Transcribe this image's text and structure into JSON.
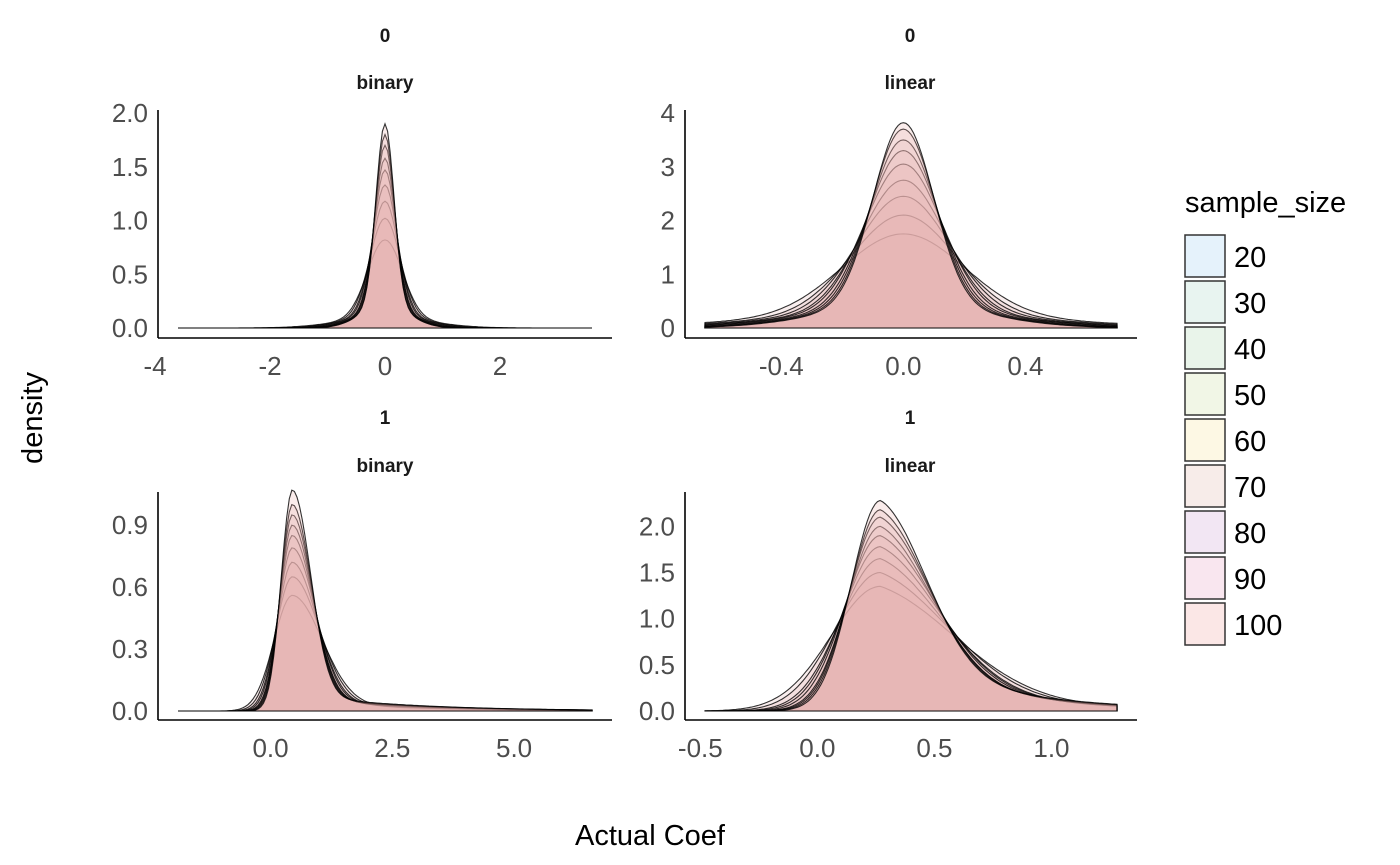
{
  "chart_data": {
    "type": "area",
    "xlabel": "Actual Coef",
    "ylabel": "density",
    "legend": {
      "title": "sample_size",
      "position": "right",
      "entries": [
        {
          "label": "20",
          "color": "#e5f2fb"
        },
        {
          "label": "30",
          "color": "#e8f4f0"
        },
        {
          "label": "40",
          "color": "#e9f4ea"
        },
        {
          "label": "50",
          "color": "#f1f6e6"
        },
        {
          "label": "60",
          "color": "#fdf8e4"
        },
        {
          "label": "70",
          "color": "#f7ece9"
        },
        {
          "label": "80",
          "color": "#f2e6f3"
        },
        {
          "label": "90",
          "color": "#f9e6ef"
        },
        {
          "label": "100",
          "color": "#fbe7e6"
        }
      ]
    },
    "grid": false,
    "panels": [
      {
        "strip": [
          "0",
          "binary"
        ],
        "xlim": [
          -3.6,
          3.6
        ],
        "ylim": [
          0,
          2.0
        ],
        "xticks": [
          {
            "v": -4,
            "l": "-4"
          },
          {
            "v": -2,
            "l": "-2"
          },
          {
            "v": 0,
            "l": "0"
          },
          {
            "v": 2,
            "l": "2"
          }
        ],
        "yticks": [
          {
            "v": 0,
            "l": "0.0"
          },
          {
            "v": 0.5,
            "l": "0.5"
          },
          {
            "v": 1.0,
            "l": "1.0"
          },
          {
            "v": 1.5,
            "l": "1.5"
          },
          {
            "v": 2.0,
            "l": "2.0"
          }
        ],
        "shape": "sym",
        "center": 0.0,
        "peaks": [
          0.82,
          1.02,
          1.18,
          1.33,
          1.47,
          1.58,
          1.7,
          1.8,
          1.9
        ],
        "widths": [
          0.3,
          0.26,
          0.23,
          0.21,
          0.19,
          0.18,
          0.17,
          0.16,
          0.155
        ]
      },
      {
        "strip": [
          "0",
          "linear"
        ],
        "xlim": [
          -0.65,
          0.7
        ],
        "ylim": [
          0,
          4.0
        ],
        "xticks": [
          {
            "v": -0.4,
            "l": "-0.4"
          },
          {
            "v": 0.0,
            "l": "0.0"
          },
          {
            "v": 0.4,
            "l": "0.4"
          }
        ],
        "yticks": [
          {
            "v": 0,
            "l": "0"
          },
          {
            "v": 1,
            "l": "1"
          },
          {
            "v": 2,
            "l": "2"
          },
          {
            "v": 3,
            "l": "3"
          },
          {
            "v": 4,
            "l": "4"
          }
        ],
        "shape": "sym",
        "center": 0.0,
        "peaks": [
          1.75,
          2.1,
          2.45,
          2.75,
          3.05,
          3.3,
          3.5,
          3.7,
          3.82
        ],
        "widths": [
          0.2,
          0.17,
          0.15,
          0.135,
          0.125,
          0.115,
          0.108,
          0.102,
          0.098
        ]
      },
      {
        "strip": [
          "1",
          "binary"
        ],
        "xlim": [
          -1.9,
          6.6
        ],
        "ylim": [
          0,
          1.05
        ],
        "xticks": [
          {
            "v": 0.0,
            "l": "0.0"
          },
          {
            "v": 2.5,
            "l": "2.5"
          },
          {
            "v": 5.0,
            "l": "5.0"
          }
        ],
        "yticks": [
          {
            "v": 0,
            "l": "0.0"
          },
          {
            "v": 0.3,
            "l": "0.3"
          },
          {
            "v": 0.6,
            "l": "0.6"
          },
          {
            "v": 0.9,
            "l": "0.9"
          }
        ],
        "shape": "skew",
        "center": 0.45,
        "peaks": [
          0.56,
          0.65,
          0.72,
          0.79,
          0.85,
          0.9,
          0.95,
          1.0,
          1.07
        ],
        "widths": [
          0.38,
          0.34,
          0.31,
          0.29,
          0.27,
          0.26,
          0.25,
          0.24,
          0.23
        ],
        "tail": {
          "weight": 0.08,
          "scale": 2.2
        }
      },
      {
        "strip": [
          "1",
          "linear"
        ],
        "xlim": [
          -0.48,
          1.28
        ],
        "ylim": [
          0,
          2.35
        ],
        "xticks": [
          {
            "v": -0.5,
            "l": "-0.5"
          },
          {
            "v": 0.0,
            "l": "0.0"
          },
          {
            "v": 0.5,
            "l": "0.5"
          },
          {
            "v": 1.0,
            "l": "1.0"
          }
        ],
        "yticks": [
          {
            "v": 0,
            "l": "0.0"
          },
          {
            "v": 0.5,
            "l": "0.5"
          },
          {
            "v": 1.0,
            "l": "1.0"
          },
          {
            "v": 1.5,
            "l": "1.5"
          },
          {
            "v": 2.0,
            "l": "2.0"
          }
        ],
        "shape": "skew",
        "center": 0.27,
        "peaks": [
          1.35,
          1.5,
          1.65,
          1.78,
          1.9,
          2.0,
          2.1,
          2.18,
          2.28
        ],
        "widths": [
          0.21,
          0.19,
          0.17,
          0.16,
          0.15,
          0.14,
          0.135,
          0.13,
          0.125
        ],
        "tail": {
          "weight": 0.3,
          "scale": 0.45
        }
      }
    ]
  }
}
